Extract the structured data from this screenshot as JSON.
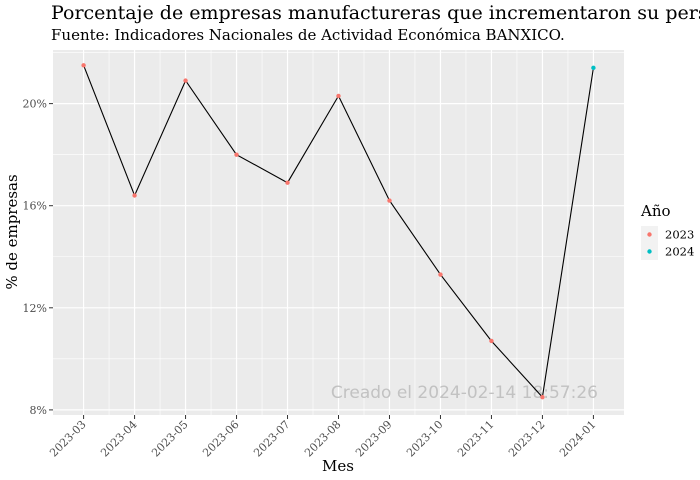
{
  "chart_data": {
    "type": "line",
    "title": "Porcentaje de empresas manufactureras que incrementaron su personal",
    "subtitle": "Fuente: Indicadores Nacionales de Actividad Económica BANXICO.",
    "xlabel": "Mes",
    "ylabel": "% de empresas",
    "categories": [
      "2023-03",
      "2023-04",
      "2023-05",
      "2023-06",
      "2023-07",
      "2023-08",
      "2023-09",
      "2023-10",
      "2023-11",
      "2023-12",
      "2024-01"
    ],
    "values": [
      21.5,
      16.4,
      20.9,
      18.0,
      16.9,
      20.3,
      16.2,
      13.3,
      10.7,
      8.5,
      21.4
    ],
    "year": [
      "2023",
      "2023",
      "2023",
      "2023",
      "2023",
      "2023",
      "2023",
      "2023",
      "2023",
      "2023",
      "2024"
    ],
    "y_ticks": [
      8,
      12,
      16,
      20
    ],
    "y_tick_labels": [
      "8%",
      "12%",
      "16%",
      "20%"
    ],
    "ylim": [
      7.8,
      22.1
    ],
    "grid": true,
    "legend": {
      "title": "Año",
      "position": "right",
      "entries": [
        {
          "name": "2023",
          "color": "#F8766D"
        },
        {
          "name": "2024",
          "color": "#00BFC4"
        }
      ]
    },
    "line_color": "#000000",
    "panel_background": "#EBEBEB",
    "annotation": "Creado el  2024-02-14 18:57:26"
  }
}
